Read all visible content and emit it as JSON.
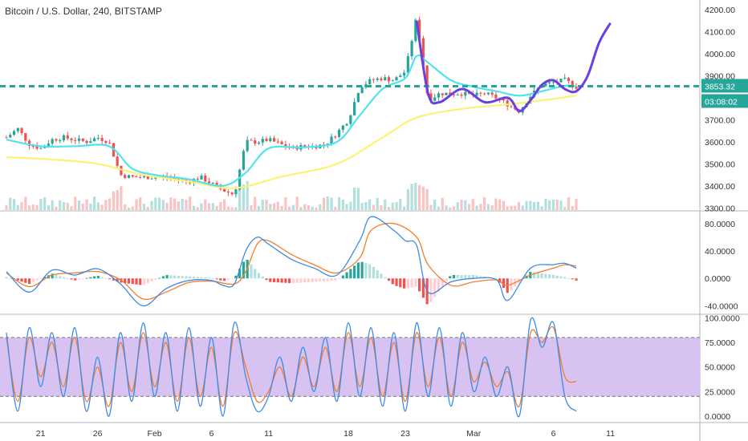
{
  "title": "Bitcoin / U.S. Dollar, 240, BITSTAMP",
  "colors": {
    "up": "#26a69a",
    "down": "#ef5350",
    "ema_fast": "#4fe3f0",
    "ema_slow": "#fff176",
    "level": "#26a69a",
    "forecast": "#6b3fe0",
    "macd": "#3d8be8",
    "signal": "#f57c2b",
    "stoch_band": "#d7c2f2",
    "stoch_k": "#3d8be8",
    "stoch_d": "#f57c2b"
  },
  "price_axis": {
    "labels": [
      "4200.00",
      "4100.00",
      "4000.00",
      "3900.00",
      "3800.00",
      "3700.00",
      "3600.00",
      "3500.00",
      "3400.00",
      "3300.00"
    ],
    "values": [
      4200,
      4100,
      4000,
      3900,
      3800,
      3700,
      3600,
      3500,
      3400,
      3300
    ]
  },
  "price_tags": {
    "last": "3853.32",
    "countdown": "03:08:02"
  },
  "macd_axis": {
    "labels": [
      "80.0000",
      "40.0000",
      "0.0000",
      "-40.0000"
    ],
    "values": [
      80,
      40,
      0,
      -40
    ]
  },
  "stoch_axis": {
    "labels": [
      "100.0000",
      "75.0000",
      "50.0000",
      "25.0000",
      "0.0000"
    ],
    "values": [
      100,
      75,
      50,
      25,
      0
    ]
  },
  "x_axis": {
    "labels": [
      "21",
      "26",
      "Feb",
      "6",
      "11",
      "18",
      "23",
      "Mar",
      "6",
      "11"
    ],
    "positions": [
      3,
      8,
      13,
      18,
      23,
      30,
      35,
      41,
      48,
      53
    ]
  },
  "chart_data": {
    "type": "candlestick",
    "title": "Bitcoin / U.S. Dollar, 240, BITSTAMP",
    "x_unit": "day index (0 = 18 Jan)",
    "price_range": [
      3290,
      4230
    ],
    "horizontal_level": 3853,
    "ohlc_anchors": [
      [
        0,
        3620
      ],
      [
        1,
        3660
      ],
      [
        2,
        3590
      ],
      [
        3,
        3570
      ],
      [
        4,
        3610
      ],
      [
        5,
        3620
      ],
      [
        6,
        3610
      ],
      [
        7,
        3600
      ],
      [
        8,
        3620
      ],
      [
        9,
        3600
      ],
      [
        10,
        3450
      ],
      [
        11,
        3440
      ],
      [
        12,
        3440
      ],
      [
        13,
        3440
      ],
      [
        14,
        3440
      ],
      [
        15,
        3430
      ],
      [
        16,
        3420
      ],
      [
        17,
        3440
      ],
      [
        18,
        3410
      ],
      [
        19,
        3380
      ],
      [
        20,
        3360
      ],
      [
        21,
        3600
      ],
      [
        22,
        3600
      ],
      [
        23,
        3610
      ],
      [
        24,
        3590
      ],
      [
        25,
        3570
      ],
      [
        26,
        3580
      ],
      [
        27,
        3580
      ],
      [
        28,
        3590
      ],
      [
        29,
        3640
      ],
      [
        30,
        3700
      ],
      [
        31,
        3850
      ],
      [
        32,
        3880
      ],
      [
        33,
        3890
      ],
      [
        34,
        3880
      ],
      [
        35,
        3920
      ],
      [
        36,
        4170
      ],
      [
        37,
        3790
      ],
      [
        38,
        3820
      ],
      [
        39,
        3820
      ],
      [
        40,
        3820
      ],
      [
        41,
        3810
      ],
      [
        42,
        3820
      ],
      [
        43,
        3800
      ],
      [
        44,
        3770
      ],
      [
        45,
        3740
      ],
      [
        46,
        3810
      ],
      [
        47,
        3860
      ],
      [
        48,
        3870
      ],
      [
        49,
        3880
      ],
      [
        50,
        3850
      ]
    ],
    "ema_fast": [
      [
        0,
        3610
      ],
      [
        3,
        3580
      ],
      [
        6,
        3580
      ],
      [
        9,
        3580
      ],
      [
        11,
        3480
      ],
      [
        13,
        3450
      ],
      [
        16,
        3430
      ],
      [
        19,
        3400
      ],
      [
        21,
        3460
      ],
      [
        23,
        3570
      ],
      [
        26,
        3575
      ],
      [
        29,
        3600
      ],
      [
        31,
        3720
      ],
      [
        33,
        3840
      ],
      [
        35,
        3890
      ],
      [
        36,
        3990
      ],
      [
        37,
        3960
      ],
      [
        39,
        3880
      ],
      [
        41,
        3850
      ],
      [
        43,
        3830
      ],
      [
        45,
        3810
      ],
      [
        47,
        3830
      ],
      [
        49,
        3855
      ],
      [
        50,
        3853
      ]
    ],
    "ema_slow": [
      [
        0,
        3530
      ],
      [
        4,
        3520
      ],
      [
        8,
        3500
      ],
      [
        12,
        3450
      ],
      [
        16,
        3420
      ],
      [
        20,
        3390
      ],
      [
        24,
        3440
      ],
      [
        29,
        3500
      ],
      [
        33,
        3620
      ],
      [
        36,
        3710
      ],
      [
        40,
        3750
      ],
      [
        44,
        3770
      ],
      [
        48,
        3795
      ],
      [
        50,
        3810
      ]
    ],
    "forecast_path": [
      [
        36,
        4150
      ],
      [
        37,
        3820
      ],
      [
        38,
        3780
      ],
      [
        40,
        3840
      ],
      [
        42,
        3780
      ],
      [
        44,
        3800
      ],
      [
        45,
        3740
      ],
      [
        46,
        3790
      ],
      [
        47,
        3860
      ],
      [
        48,
        3880
      ],
      [
        49,
        3840
      ],
      [
        50,
        3830
      ],
      [
        51,
        3900
      ],
      [
        52,
        4050
      ],
      [
        53,
        4140
      ]
    ],
    "macd": {
      "range": [
        -50,
        95
      ],
      "macd_line": [
        [
          0,
          10
        ],
        [
          2,
          -20
        ],
        [
          4,
          12
        ],
        [
          6,
          5
        ],
        [
          8,
          14
        ],
        [
          10,
          -8
        ],
        [
          12,
          -40
        ],
        [
          14,
          -15
        ],
        [
          16,
          -3
        ],
        [
          18,
          -3
        ],
        [
          19,
          -10
        ],
        [
          20,
          -8
        ],
        [
          21,
          40
        ],
        [
          22,
          60
        ],
        [
          23,
          50
        ],
        [
          25,
          28
        ],
        [
          27,
          15
        ],
        [
          29,
          5
        ],
        [
          31,
          55
        ],
        [
          32,
          90
        ],
        [
          34,
          70
        ],
        [
          35,
          55
        ],
        [
          36,
          48
        ],
        [
          37,
          -20
        ],
        [
          39,
          -5
        ],
        [
          41,
          0
        ],
        [
          43,
          -2
        ],
        [
          44,
          -32
        ],
        [
          46,
          15
        ],
        [
          48,
          20
        ],
        [
          49,
          22
        ],
        [
          50,
          15
        ]
      ],
      "signal_line": [
        [
          0,
          8
        ],
        [
          2,
          -12
        ],
        [
          4,
          5
        ],
        [
          6,
          8
        ],
        [
          8,
          10
        ],
        [
          10,
          -2
        ],
        [
          12,
          -30
        ],
        [
          14,
          -20
        ],
        [
          16,
          -6
        ],
        [
          18,
          -4
        ],
        [
          20,
          -8
        ],
        [
          21,
          10
        ],
        [
          22,
          50
        ],
        [
          23,
          55
        ],
        [
          25,
          35
        ],
        [
          27,
          20
        ],
        [
          29,
          8
        ],
        [
          31,
          30
        ],
        [
          32,
          70
        ],
        [
          34,
          80
        ],
        [
          36,
          60
        ],
        [
          37,
          20
        ],
        [
          39,
          -10
        ],
        [
          41,
          -5
        ],
        [
          43,
          -2
        ],
        [
          44,
          -10
        ],
        [
          46,
          5
        ],
        [
          48,
          15
        ],
        [
          49,
          20
        ],
        [
          50,
          18
        ]
      ]
    },
    "stochastic": {
      "range": [
        -5,
        102
      ],
      "band": [
        20,
        80
      ],
      "k_line": [
        [
          0,
          85
        ],
        [
          1,
          5
        ],
        [
          2,
          90
        ],
        [
          3,
          30
        ],
        [
          4,
          85
        ],
        [
          5,
          20
        ],
        [
          6,
          90
        ],
        [
          7,
          5
        ],
        [
          8,
          60
        ],
        [
          9,
          0
        ],
        [
          10,
          85
        ],
        [
          11,
          15
        ],
        [
          12,
          95
        ],
        [
          13,
          20
        ],
        [
          14,
          85
        ],
        [
          15,
          5
        ],
        [
          16,
          90
        ],
        [
          17,
          10
        ],
        [
          18,
          80
        ],
        [
          19,
          0
        ],
        [
          20,
          95
        ],
        [
          21,
          40
        ],
        [
          22,
          5
        ],
        [
          23,
          20
        ],
        [
          24,
          60
        ],
        [
          25,
          15
        ],
        [
          26,
          70
        ],
        [
          27,
          25
        ],
        [
          28,
          80
        ],
        [
          29,
          15
        ],
        [
          30,
          95
        ],
        [
          31,
          20
        ],
        [
          32,
          90
        ],
        [
          33,
          10
        ],
        [
          34,
          85
        ],
        [
          35,
          5
        ],
        [
          36,
          95
        ],
        [
          37,
          20
        ],
        [
          38,
          90
        ],
        [
          39,
          10
        ],
        [
          40,
          85
        ],
        [
          41,
          25
        ],
        [
          42,
          60
        ],
        [
          43,
          20
        ],
        [
          44,
          50
        ],
        [
          45,
          0
        ],
        [
          46,
          98
        ],
        [
          47,
          70
        ],
        [
          48,
          95
        ],
        [
          49,
          20
        ],
        [
          50,
          5
        ]
      ],
      "d_line": [
        [
          0,
          80
        ],
        [
          1,
          15
        ],
        [
          2,
          80
        ],
        [
          3,
          40
        ],
        [
          4,
          75
        ],
        [
          5,
          30
        ],
        [
          6,
          80
        ],
        [
          7,
          15
        ],
        [
          8,
          50
        ],
        [
          9,
          10
        ],
        [
          10,
          75
        ],
        [
          11,
          25
        ],
        [
          12,
          85
        ],
        [
          13,
          30
        ],
        [
          14,
          75
        ],
        [
          15,
          15
        ],
        [
          16,
          80
        ],
        [
          17,
          20
        ],
        [
          18,
          70
        ],
        [
          19,
          10
        ],
        [
          20,
          85
        ],
        [
          21,
          50
        ],
        [
          22,
          15
        ],
        [
          23,
          25
        ],
        [
          24,
          50
        ],
        [
          25,
          20
        ],
        [
          26,
          60
        ],
        [
          27,
          30
        ],
        [
          28,
          70
        ],
        [
          29,
          25
        ],
        [
          30,
          85
        ],
        [
          31,
          30
        ],
        [
          32,
          80
        ],
        [
          33,
          20
        ],
        [
          34,
          75
        ],
        [
          35,
          15
        ],
        [
          36,
          85
        ],
        [
          37,
          30
        ],
        [
          38,
          80
        ],
        [
          39,
          20
        ],
        [
          40,
          75
        ],
        [
          41,
          35
        ],
        [
          42,
          55
        ],
        [
          43,
          30
        ],
        [
          44,
          45
        ],
        [
          45,
          10
        ],
        [
          46,
          85
        ],
        [
          47,
          75
        ],
        [
          48,
          90
        ],
        [
          49,
          40
        ],
        [
          50,
          35
        ]
      ]
    }
  }
}
